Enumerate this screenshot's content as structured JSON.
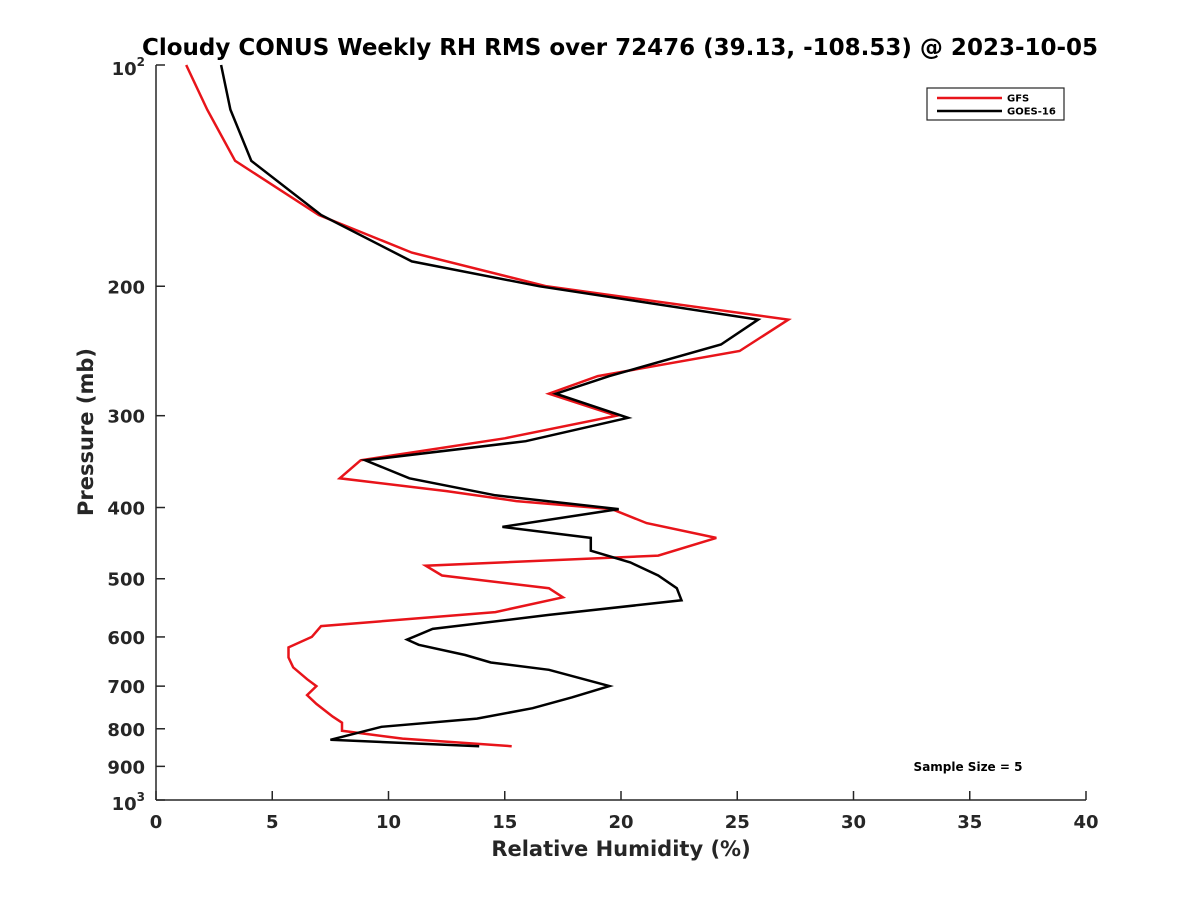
{
  "chart_data": {
    "type": "line",
    "title": "Cloudy CONUS Weekly RH RMS over 72476 (39.13, -108.53) @ 2023-10-05",
    "xlabel": "Relative Humidity (%)",
    "ylabel": "Pressure (mb)",
    "xlim": [
      0,
      40
    ],
    "ylim": [
      100,
      1000
    ],
    "y_scale": "log",
    "y_reversed": true,
    "x_ticks": [
      0,
      5,
      10,
      15,
      20,
      25,
      30,
      35,
      40
    ],
    "x_tick_labels": [
      "0",
      "5",
      "10",
      "15",
      "20",
      "25",
      "30",
      "35",
      "40"
    ],
    "y_ticks": [
      {
        "value": 100,
        "label": "",
        "base": "10",
        "exp": "2"
      },
      {
        "value": 200,
        "label": "200"
      },
      {
        "value": 300,
        "label": "300"
      },
      {
        "value": 400,
        "label": "400"
      },
      {
        "value": 500,
        "label": "500"
      },
      {
        "value": 600,
        "label": "600"
      },
      {
        "value": 700,
        "label": "700"
      },
      {
        "value": 800,
        "label": "800"
      },
      {
        "value": 900,
        "label": "900"
      },
      {
        "value": 1000,
        "label": "",
        "base": "10",
        "exp": "3"
      }
    ],
    "grid": false,
    "legend_position": "top-right",
    "series": [
      {
        "name": "GFS",
        "color": "#e8141a",
        "points": [
          [
            1.3,
            100
          ],
          [
            2.2,
            115
          ],
          [
            3.4,
            135
          ],
          [
            7.0,
            160
          ],
          [
            11.0,
            180
          ],
          [
            16.8,
            200
          ],
          [
            27.2,
            222
          ],
          [
            25.1,
            245
          ],
          [
            19.0,
            265
          ],
          [
            16.9,
            280
          ],
          [
            19.8,
            300
          ],
          [
            15.0,
            322
          ],
          [
            8.8,
            345
          ],
          [
            7.9,
            365
          ],
          [
            12.5,
            380
          ],
          [
            15.5,
            392
          ],
          [
            19.6,
            402
          ],
          [
            21.1,
            420
          ],
          [
            24.1,
            440
          ],
          [
            21.6,
            465
          ],
          [
            11.6,
            480
          ],
          [
            12.3,
            495
          ],
          [
            16.9,
            515
          ],
          [
            17.5,
            530
          ],
          [
            14.6,
            555
          ],
          [
            7.1,
            580
          ],
          [
            6.7,
            600
          ],
          [
            5.7,
            620
          ],
          [
            5.7,
            640
          ],
          [
            5.9,
            660
          ],
          [
            6.5,
            685
          ],
          [
            6.9,
            700
          ],
          [
            6.5,
            720
          ],
          [
            6.9,
            740
          ],
          [
            7.6,
            770
          ],
          [
            8.0,
            785
          ],
          [
            8.0,
            805
          ],
          [
            10.6,
            825
          ],
          [
            15.3,
            845
          ]
        ]
      },
      {
        "name": "GOES-16",
        "color": "#000000",
        "points": [
          [
            2.8,
            100
          ],
          [
            3.2,
            115
          ],
          [
            4.1,
            135
          ],
          [
            7.1,
            160
          ],
          [
            11.0,
            185
          ],
          [
            16.5,
            200
          ],
          [
            25.9,
            222
          ],
          [
            24.3,
            240
          ],
          [
            19.5,
            265
          ],
          [
            17.2,
            280
          ],
          [
            20.3,
            302
          ],
          [
            15.9,
            325
          ],
          [
            9.0,
            345
          ],
          [
            10.9,
            365
          ],
          [
            14.6,
            385
          ],
          [
            19.9,
            402
          ],
          [
            14.9,
            425
          ],
          [
            18.7,
            440
          ],
          [
            18.7,
            458
          ],
          [
            20.4,
            475
          ],
          [
            21.6,
            495
          ],
          [
            22.4,
            515
          ],
          [
            22.6,
            535
          ],
          [
            16.9,
            560
          ],
          [
            11.9,
            585
          ],
          [
            10.8,
            605
          ],
          [
            11.3,
            615
          ],
          [
            13.3,
            635
          ],
          [
            14.4,
            650
          ],
          [
            16.9,
            665
          ],
          [
            19.5,
            700
          ],
          [
            17.9,
            725
          ],
          [
            16.2,
            750
          ],
          [
            13.8,
            775
          ],
          [
            9.7,
            795
          ],
          [
            7.5,
            828
          ],
          [
            13.9,
            845
          ]
        ]
      }
    ],
    "annotations": [
      {
        "text": "Sample Size = 5",
        "position": "bottom-right"
      }
    ]
  }
}
